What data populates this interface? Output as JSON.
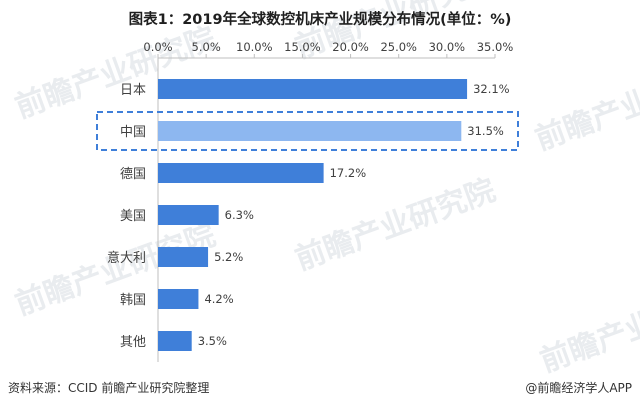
{
  "chart_data": {
    "type": "bar",
    "orientation": "horizontal",
    "title": "图表1：2019年全球数控机床产业规模分布情况(单位：%)",
    "xlim": [
      0,
      35
    ],
    "xticks": [
      "0.0%",
      "5.0%",
      "10.0%",
      "15.0%",
      "20.0%",
      "25.0%",
      "30.0%",
      "35.0%"
    ],
    "x_axis_position": "top",
    "grid": false,
    "categories": [
      "日本",
      "中国",
      "德国",
      "美国",
      "意大利",
      "韩国",
      "其他"
    ],
    "values": [
      32.1,
      31.5,
      17.2,
      6.3,
      5.2,
      4.2,
      3.5
    ],
    "value_labels": [
      "32.1%",
      "31.5%",
      "17.2%",
      "6.3%",
      "5.2%",
      "4.2%",
      "3.5%"
    ],
    "highlighted_category": "中国",
    "colors": {
      "bar": "#3f7fd9",
      "highlight_bar": "#8db7f0",
      "highlight_box": "#3f7fd9",
      "axis": "#bfbfbf"
    }
  },
  "footer": {
    "source": "资料来源：CCID 前瞻产业研究院整理",
    "brand": "@前瞻经济学人APP"
  },
  "watermark": {
    "text": "前瞻产业研究院"
  }
}
